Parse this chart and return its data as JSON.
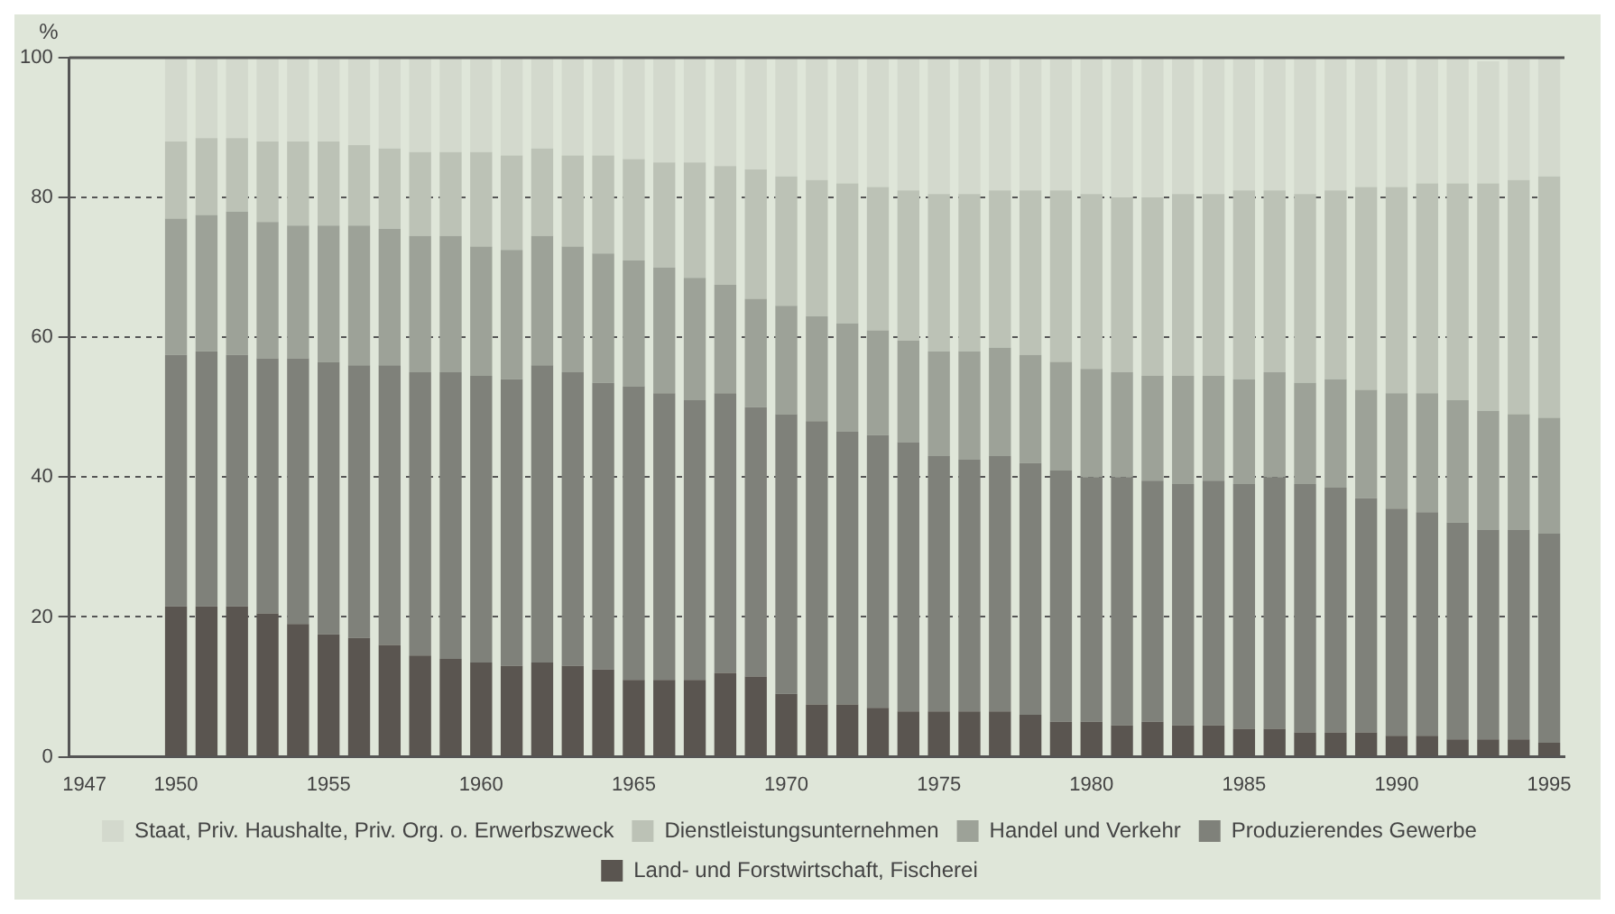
{
  "chart_data": {
    "type": "bar",
    "stacked": true,
    "ylabel": "%",
    "categories": [
      "1947",
      null,
      null,
      "1950",
      null,
      null,
      null,
      null,
      "1955",
      null,
      null,
      null,
      null,
      "1960",
      null,
      null,
      null,
      null,
      "1965",
      null,
      null,
      null,
      null,
      "1970",
      null,
      null,
      null,
      null,
      "1975",
      null,
      null,
      null,
      null,
      "1980",
      null,
      null,
      null,
      null,
      "1985",
      null,
      null,
      null,
      null,
      "1990",
      null,
      null,
      null,
      null,
      "1995"
    ],
    "series": [
      {
        "name": "Land- und Forstwirtschaft, Fischerei",
        "color": "#5a5550",
        "values": [
          null,
          null,
          null,
          21.5,
          21.5,
          21.5,
          20.5,
          19,
          17.5,
          17,
          16,
          14.5,
          14,
          13.5,
          13,
          13.5,
          13,
          12.5,
          11,
          11,
          11,
          12,
          11.5,
          9,
          7.5,
          7.5,
          7,
          6.5,
          6.5,
          6.5,
          6.5,
          6,
          5,
          5,
          4.5,
          5,
          4.5,
          4.5,
          4,
          4,
          3.5,
          3.5,
          3.5,
          3,
          3,
          2.5,
          2.5,
          2.5,
          2
        ]
      },
      {
        "name": "Produzierendes Gewerbe",
        "color": "#7f817a",
        "values": [
          null,
          null,
          null,
          36,
          36.5,
          36,
          36.5,
          38,
          39,
          39,
          40,
          40.5,
          41,
          41,
          41,
          42.5,
          42,
          41,
          42,
          41,
          40,
          40,
          38.5,
          40,
          40.5,
          39,
          39,
          38.5,
          36.5,
          36,
          36.5,
          36,
          36,
          35,
          35.5,
          34.5,
          34.5,
          35,
          35,
          36,
          35.5,
          35,
          33.5,
          32.5,
          32,
          31,
          30,
          30,
          30
        ]
      },
      {
        "name": "Handel und Verkehr",
        "color": "#9da298",
        "values": [
          null,
          null,
          null,
          19.5,
          19.5,
          20.5,
          19.5,
          19,
          19.5,
          20,
          19.5,
          19.5,
          19.5,
          18.5,
          18.5,
          18.5,
          18,
          18.5,
          18,
          18,
          17.5,
          15.5,
          15.5,
          15.5,
          15,
          15.5,
          15,
          14.5,
          15,
          15.5,
          15.5,
          15.5,
          15.5,
          15.5,
          15,
          15,
          15.5,
          15,
          15,
          15,
          14.5,
          15.5,
          15.5,
          16.5,
          17,
          17.5,
          17,
          16.5,
          16.5
        ]
      },
      {
        "name": "Dienstleistungsunternehmen",
        "color": "#bcc2b6",
        "values": [
          null,
          null,
          null,
          11,
          11,
          10.5,
          11.5,
          12,
          12,
          11.5,
          11.5,
          12,
          12,
          13.5,
          13.5,
          12.5,
          13,
          14,
          14.5,
          15,
          16.5,
          17,
          18.5,
          18.5,
          19.5,
          20,
          20.5,
          21.5,
          22.5,
          22.5,
          22.5,
          23.5,
          24.5,
          25,
          25,
          25.5,
          26,
          26,
          27,
          26,
          27,
          27,
          29,
          29.5,
          30,
          31,
          32.5,
          33.5,
          34.5
        ]
      },
      {
        "name": "Staat, Priv. Haushalte, Priv. Org. o. Erwerbszweck",
        "color": "#d3d9cd",
        "values": [
          null,
          null,
          null,
          12,
          11.5,
          11.5,
          12,
          12,
          12,
          12.5,
          13,
          13.5,
          13.5,
          13.5,
          14,
          13,
          14,
          14,
          14.5,
          15,
          15,
          15.5,
          16,
          17,
          17.5,
          18,
          18.5,
          19,
          19.5,
          19.5,
          19,
          19,
          19,
          19.5,
          20,
          20,
          19.5,
          19.5,
          19,
          19,
          19.5,
          19,
          18.5,
          18.5,
          18,
          18,
          17.5,
          17.5,
          17
        ]
      }
    ],
    "ylim": [
      0,
      100
    ],
    "yticks": [
      0,
      20,
      40,
      60,
      80,
      100
    ],
    "grid": "y",
    "legend": "bottom"
  }
}
